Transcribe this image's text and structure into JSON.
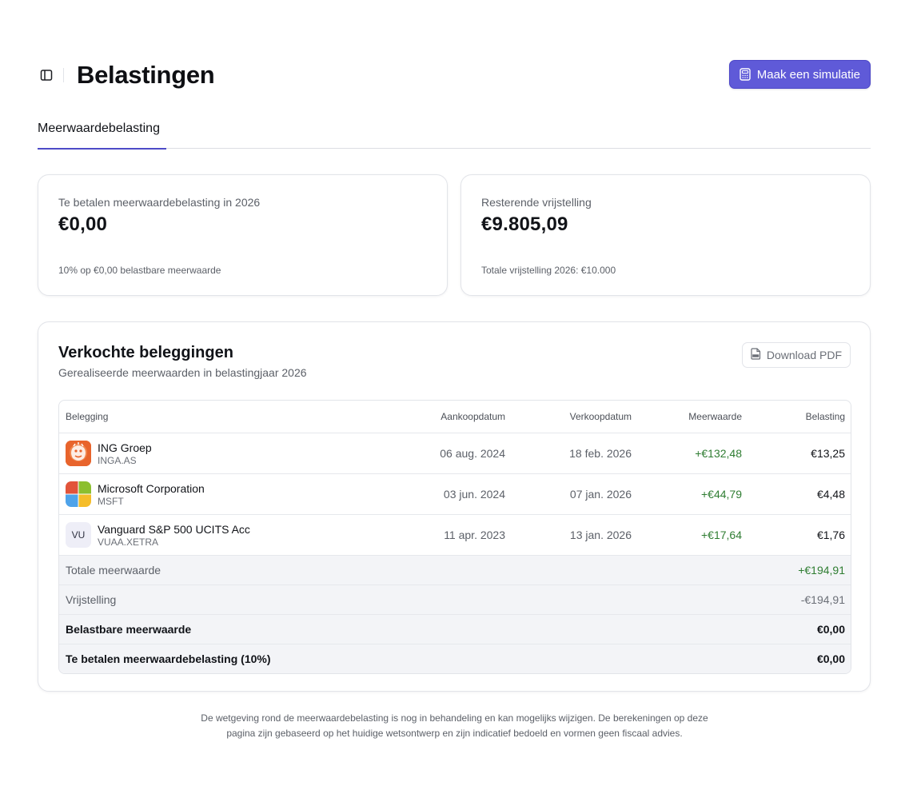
{
  "header": {
    "title": "Belastingen",
    "simulate_label": "Maak een simulatie",
    "sidebar_toggle_icon": "sidebar-panel-icon",
    "simulate_icon": "calculator-icon"
  },
  "tabs": [
    {
      "label": "Meerwaardebelasting",
      "active": true
    }
  ],
  "summary": {
    "tax_due": {
      "label": "Te betalen meerwaardebelasting in 2026",
      "value": "€0,00",
      "note": "10% op €0,00 belastbare meerwaarde"
    },
    "exemption": {
      "label": "Resterende vrijstelling",
      "value": "€9.805,09",
      "note": "Totale vrijstelling 2026: €10.000"
    }
  },
  "sold": {
    "title": "Verkochte beleggingen",
    "subtitle": "Gerealiseerde meerwaarden in belastingjaar 2026",
    "download_label": "Download PDF",
    "download_icon": "pdf-file-icon",
    "columns": {
      "asset": "Belegging",
      "buy_date": "Aankoopdatum",
      "sell_date": "Verkoopdatum",
      "gain": "Meerwaarde",
      "tax": "Belasting"
    },
    "rows": [
      {
        "name": "ING Groep",
        "ticker": "INGA.AS",
        "buy_date": "06 aug. 2024",
        "sell_date": "18 feb. 2026",
        "gain": "+€132,48",
        "tax": "€13,25",
        "logo": "ing-lion-logo",
        "brand_color": "#e8642c"
      },
      {
        "name": "Microsoft Corporation",
        "ticker": "MSFT",
        "buy_date": "03 jun. 2024",
        "sell_date": "07 jan. 2026",
        "gain": "+€44,79",
        "tax": "€4,48",
        "logo": "microsoft-logo"
      },
      {
        "name": "Vanguard S&P 500 UCITS Acc",
        "ticker": "VUAA.XETRA",
        "buy_date": "11 apr. 2023",
        "sell_date": "13 jan. 2026",
        "gain": "+€17,64",
        "tax": "€1,76",
        "logo_text": "VU"
      }
    ],
    "totals": {
      "total_gain_label": "Totale meerwaarde",
      "total_gain_value": "+€194,91",
      "exemption_label": "Vrijstelling",
      "exemption_value": "-€194,91",
      "taxable_label": "Belastbare meerwaarde",
      "taxable_value": "€0,00",
      "tax_due_label": "Te betalen meerwaardebelasting (10%)",
      "tax_due_value": "€0,00"
    }
  },
  "disclaimer": {
    "line1": "De wetgeving rond de meerwaardebelasting is nog in behandeling en kan mogelijks wijzigen. De berekeningen op deze",
    "line2": "pagina zijn gebaseerd op het huidige wetsontwerp en zijn indicatief bedoeld en vormen geen fiscaal advies."
  },
  "colors": {
    "accent": "#5f5ad8",
    "positive": "#2f7d32",
    "tab_underline": "#4e4bc7"
  }
}
